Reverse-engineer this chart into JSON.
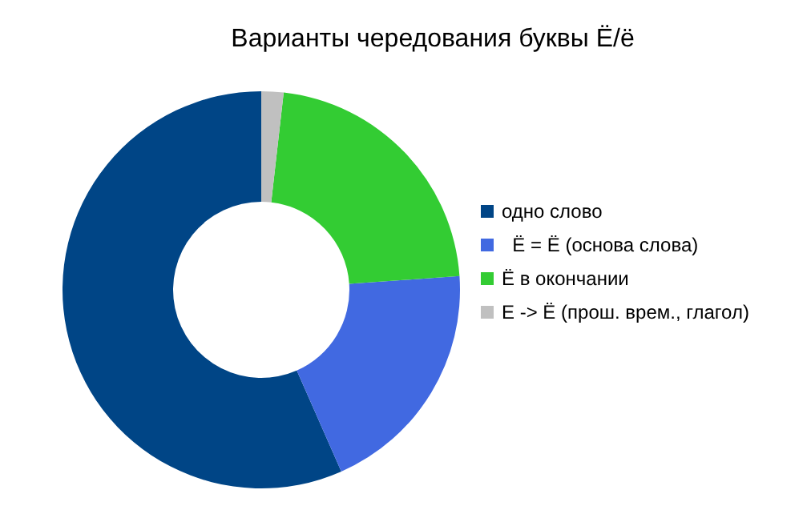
{
  "chart_data": {
    "type": "donut",
    "title": "Варианты чередования буквы Ё/ё",
    "categories": [
      "одно слово",
      "  Ё = Ё (основа слова)",
      "Ё в окончании",
      "Е -> Ё (прош. врем., глагол)"
    ],
    "values": [
      56.6,
      19.5,
      22.1,
      1.8
    ],
    "colors": [
      "#004586",
      "#4169e1",
      "#33cc33",
      "#c0c0c0"
    ],
    "legend": "right"
  }
}
